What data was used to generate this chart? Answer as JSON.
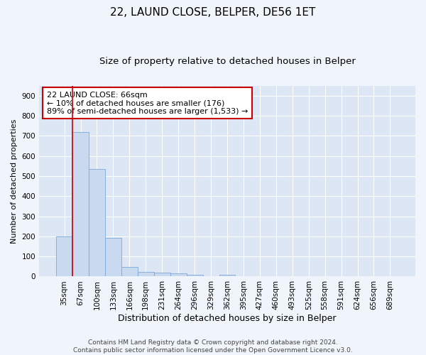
{
  "title1": "22, LAUND CLOSE, BELPER, DE56 1ET",
  "title2": "Size of property relative to detached houses in Belper",
  "xlabel": "Distribution of detached houses by size in Belper",
  "ylabel": "Number of detached properties",
  "categories": [
    "35sqm",
    "67sqm",
    "100sqm",
    "133sqm",
    "166sqm",
    "198sqm",
    "231sqm",
    "264sqm",
    "296sqm",
    "329sqm",
    "362sqm",
    "395sqm",
    "427sqm",
    "460sqm",
    "493sqm",
    "525sqm",
    "558sqm",
    "591sqm",
    "624sqm",
    "656sqm",
    "689sqm"
  ],
  "values": [
    200,
    720,
    535,
    193,
    48,
    22,
    18,
    14,
    10,
    0,
    10,
    0,
    0,
    0,
    0,
    0,
    0,
    0,
    0,
    0,
    0
  ],
  "bar_color": "#c9d9ef",
  "bar_edge_color": "#7da7d9",
  "vline_color": "#cc0000",
  "annotation_text": "22 LAUND CLOSE: 66sqm\n← 10% of detached houses are smaller (176)\n89% of semi-detached houses are larger (1,533) →",
  "annotation_box_color": "white",
  "annotation_box_edge": "#cc0000",
  "ylim": [
    0,
    950
  ],
  "yticks": [
    0,
    100,
    200,
    300,
    400,
    500,
    600,
    700,
    800,
    900
  ],
  "footer": "Contains HM Land Registry data © Crown copyright and database right 2024.\nContains public sector information licensed under the Open Government Licence v3.0.",
  "fig_bg_color": "#f0f4fb",
  "plot_bg_color": "#dce6f4",
  "grid_color": "white",
  "title1_fontsize": 11,
  "title2_fontsize": 9.5,
  "xlabel_fontsize": 9,
  "ylabel_fontsize": 8,
  "tick_fontsize": 7.5,
  "footer_fontsize": 6.5,
  "annotation_fontsize": 8
}
